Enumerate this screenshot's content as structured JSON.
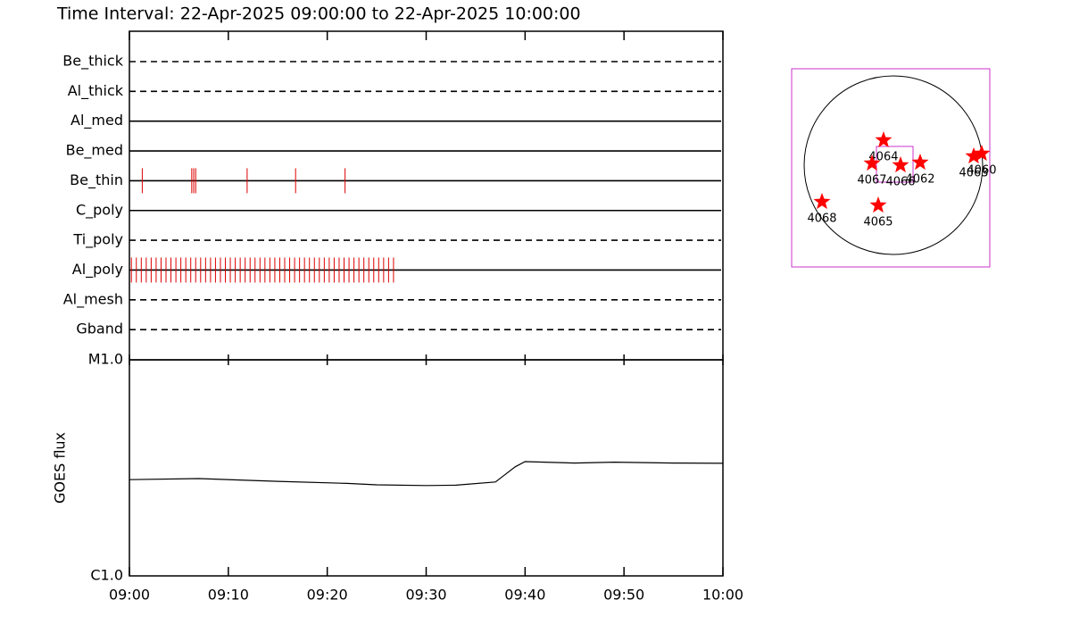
{
  "chart_data": [
    {
      "type": "timeline",
      "title": "Time Interval: 22-Apr-2025 09:00:00 to 22-Apr-2025 10:00:00",
      "xlim": [
        0,
        60
      ],
      "color": "#dd0000",
      "series": [
        {
          "name": "Be_thick",
          "style": "dashed",
          "values": []
        },
        {
          "name": "Al_thick",
          "style": "dashed",
          "values": []
        },
        {
          "name": "Al_med",
          "style": "solid",
          "values": []
        },
        {
          "name": "Be_med",
          "style": "solid",
          "values": []
        },
        {
          "name": "Be_thin",
          "style": "solid",
          "values": [
            1.3,
            6.3,
            6.5,
            6.7,
            11.9,
            16.8,
            21.8
          ]
        },
        {
          "name": "C_poly",
          "style": "solid",
          "values": []
        },
        {
          "name": "Ti_poly",
          "style": "dashed",
          "values": []
        },
        {
          "name": "Al_poly",
          "style": "solid",
          "values": [
            0.2,
            0.7,
            1.2,
            1.7,
            2.2,
            2.7,
            3.2,
            3.7,
            4.2,
            4.7,
            5.2,
            5.7,
            6.2,
            6.7,
            7.2,
            7.7,
            8.2,
            8.7,
            9.2,
            9.7,
            10.2,
            10.7,
            11.2,
            11.7,
            12.2,
            12.7,
            13.2,
            13.7,
            14.2,
            14.7,
            15.2,
            15.7,
            16.2,
            16.7,
            17.2,
            17.7,
            18.2,
            18.7,
            19.2,
            19.7,
            20.2,
            20.7,
            21.2,
            21.7,
            22.2,
            22.7,
            23.2,
            23.7,
            24.2,
            24.7,
            25.2,
            25.7,
            26.2,
            26.7
          ]
        },
        {
          "name": "Al_mesh",
          "style": "dashed",
          "values": []
        },
        {
          "name": "Gband",
          "style": "dashed",
          "values": []
        }
      ]
    },
    {
      "type": "line",
      "ylabel": "GOES flux",
      "log_scale": true,
      "color": "#000000",
      "xlim": [
        0,
        60
      ],
      "xticks": [
        {
          "value": 0,
          "label": "09:00"
        },
        {
          "value": 10,
          "label": "09:10"
        },
        {
          "value": 20,
          "label": "09:20"
        },
        {
          "value": 30,
          "label": "09:30"
        },
        {
          "value": 40,
          "label": "09:40"
        },
        {
          "value": 50,
          "label": "09:50"
        },
        {
          "value": 60,
          "label": "10:00"
        }
      ],
      "ylim": [
        1e-06,
        1e-05
      ],
      "yticks": [
        {
          "value": 1e-06,
          "label": "C1.0"
        },
        {
          "value": 1e-05,
          "label": "M1.0"
        }
      ],
      "x": [
        0,
        7,
        15,
        22,
        25,
        30,
        33,
        37,
        38,
        39,
        40,
        45,
        49,
        55,
        60
      ],
      "values": [
        2.79e-06,
        2.82e-06,
        2.74e-06,
        2.68e-06,
        2.64e-06,
        2.62e-06,
        2.63e-06,
        2.72e-06,
        2.95e-06,
        3.2e-06,
        3.38e-06,
        3.33e-06,
        3.36e-06,
        3.33e-06,
        3.32e-06
      ]
    },
    {
      "type": "map",
      "color": "#ff0000",
      "regions": [
        {
          "label": "4064",
          "x": -106,
          "y": 269
        },
        {
          "label": "4067",
          "x": -230,
          "y": 19
        },
        {
          "label": "4066",
          "x": 77,
          "y": 0
        },
        {
          "label": "4062",
          "x": 288,
          "y": 29
        },
        {
          "label": "4063",
          "x": 864,
          "y": 96
        },
        {
          "label": "4060",
          "x": 950,
          "y": 125
        },
        {
          "label": "4068",
          "x": -768,
          "y": -394
        },
        {
          "label": "4065",
          "x": -163,
          "y": -432
        }
      ]
    }
  ]
}
